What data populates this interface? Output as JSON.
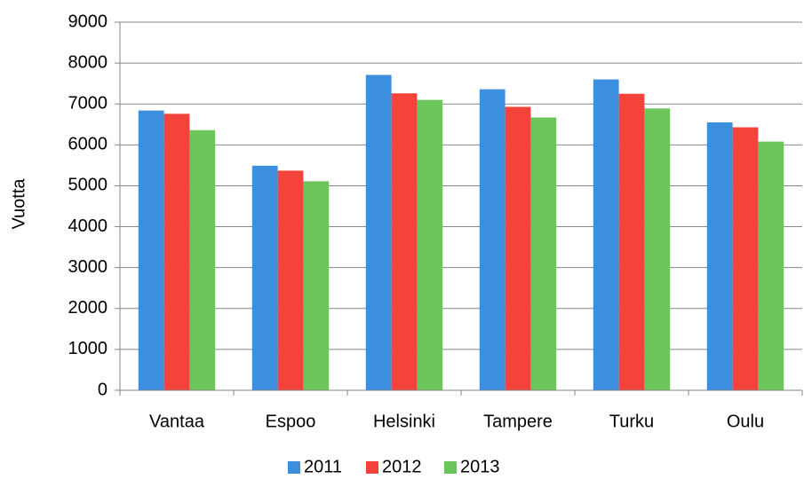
{
  "chart_data": {
    "type": "bar",
    "ylabel": "Vuotta",
    "categories": [
      "Vantaa",
      "Espoo",
      "Helsinki",
      "Tampere",
      "Turku",
      "Oulu"
    ],
    "series": [
      {
        "name": "2011",
        "color": "#3c8fde",
        "values": [
          6840,
          5490,
          7710,
          7360,
          7600,
          6550
        ]
      },
      {
        "name": "2012",
        "color": "#f4433b",
        "values": [
          6760,
          5370,
          7260,
          6930,
          7250,
          6430
        ]
      },
      {
        "name": "2013",
        "color": "#6cc55a",
        "values": [
          6360,
          5110,
          7100,
          6670,
          6890,
          6080
        ]
      }
    ],
    "ylim": [
      0,
      9000
    ],
    "yticks": [
      0,
      1000,
      2000,
      3000,
      4000,
      5000,
      6000,
      7000,
      8000,
      9000
    ],
    "grid": true,
    "legend": "bottom"
  }
}
